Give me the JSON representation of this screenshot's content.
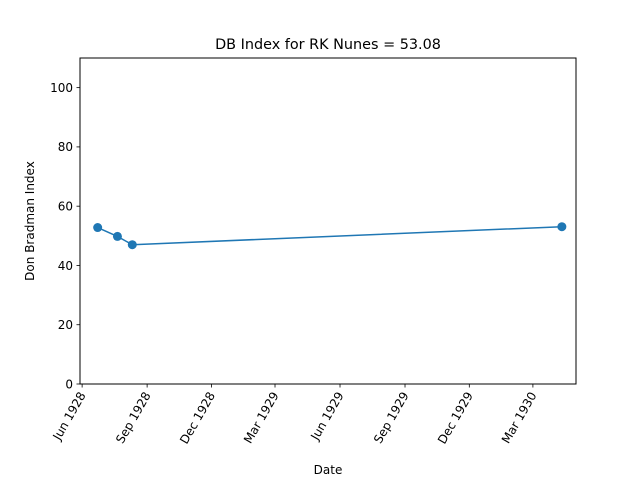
{
  "chart_data": {
    "type": "line",
    "title": "DB Index for RK Nunes = 53.08",
    "xlabel": "Date",
    "ylabel": "Don Bradman Index",
    "ylim": [
      0,
      110
    ],
    "xlim": [
      "1928-05-29",
      "1930-05-01"
    ],
    "yticks": [
      0,
      20,
      40,
      60,
      80,
      100
    ],
    "xticks": [
      {
        "date": "1928-06-01",
        "label": "Jun 1928"
      },
      {
        "date": "1928-09-01",
        "label": "Sep 1928"
      },
      {
        "date": "1928-12-01",
        "label": "Dec 1928"
      },
      {
        "date": "1929-03-01",
        "label": "Mar 1929"
      },
      {
        "date": "1929-06-01",
        "label": "Jun 1929"
      },
      {
        "date": "1929-09-01",
        "label": "Sep 1929"
      },
      {
        "date": "1929-12-01",
        "label": "Dec 1929"
      },
      {
        "date": "1930-03-01",
        "label": "Mar 1930"
      }
    ],
    "series": [
      {
        "color": "#1f77b4",
        "marker": "circle",
        "points": [
          {
            "x": "1928-06-23",
            "y": 52.8
          },
          {
            "x": "1928-07-21",
            "y": 49.8
          },
          {
            "x": "1928-08-11",
            "y": 47.0
          },
          {
            "x": "1930-04-11",
            "y": 53.08
          }
        ]
      }
    ],
    "grid": false,
    "legend": "none"
  }
}
